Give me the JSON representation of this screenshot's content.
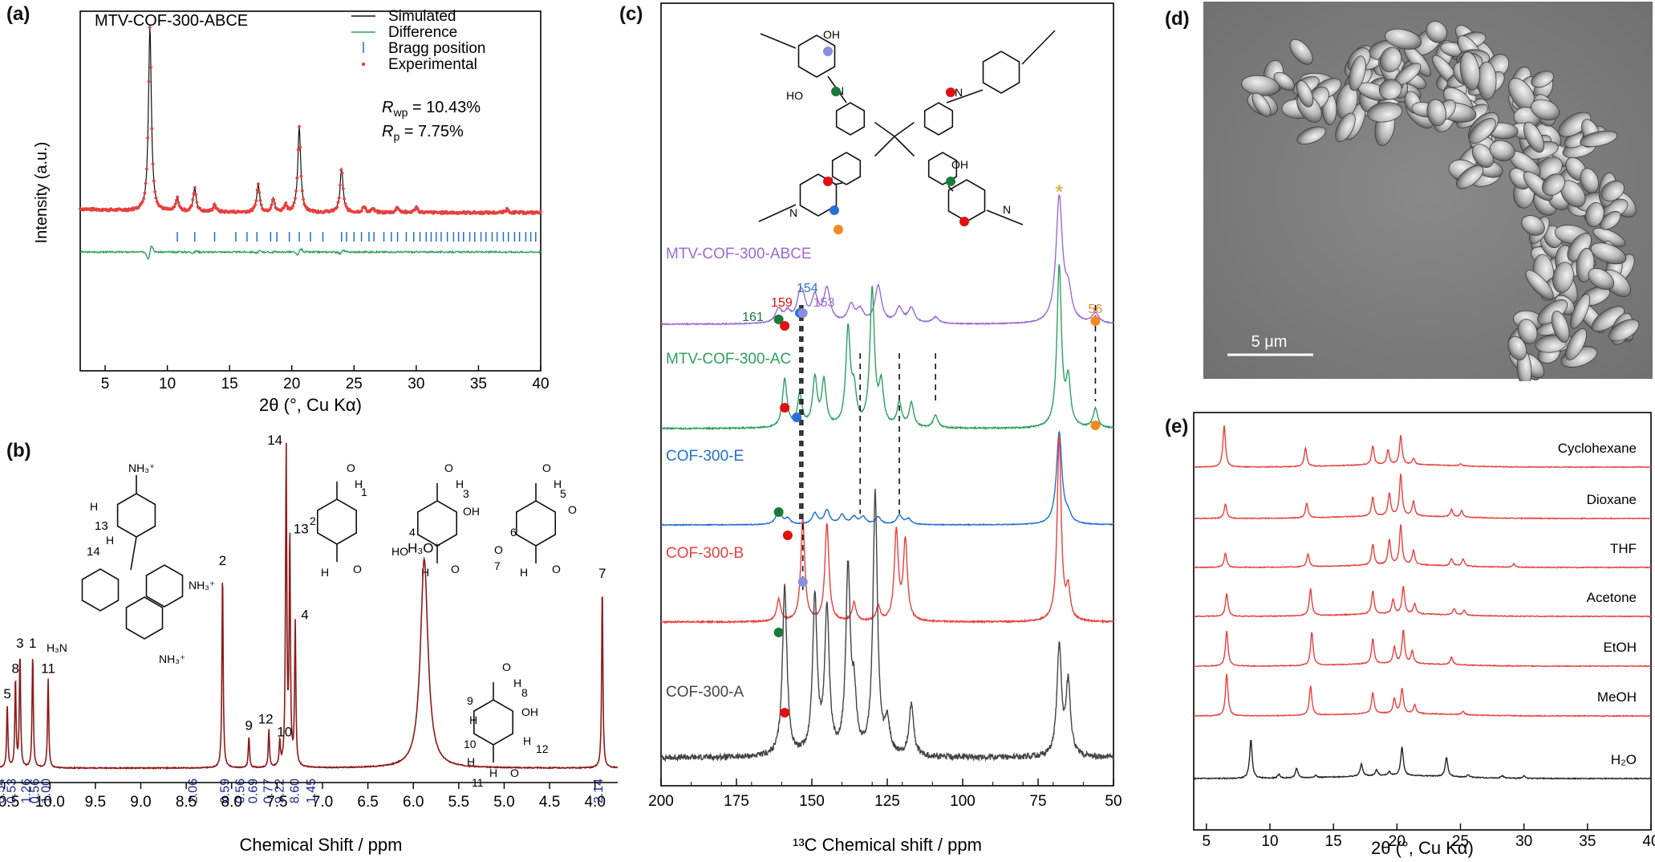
{
  "colors": {
    "red": "#e8403f",
    "green": "#2ea060",
    "blue": "#1f6fd0",
    "purple": "#9b6bd3",
    "dark": "#8b1a1a",
    "gray": "#444444",
    "navy": "#1a2a8c",
    "orange": "#e88a2a",
    "dot_green": "#1a7a3a",
    "dot_blue": "#2a6fd8",
    "dot_lavender": "#8c8ce0",
    "dot_red": "#e01010",
    "dot_orange": "#f08a20"
  },
  "panels": {
    "a": "(a)",
    "b": "(b)",
    "c": "(c)",
    "d": "(d)",
    "e": "(e)"
  },
  "chart_data": [
    {
      "id": "a",
      "type": "line",
      "title": "MTV-COF-300-ABCE",
      "xlabel": "2θ (°, Cu Kα)",
      "ylabel": "Intensity (a.u.)",
      "xlim": [
        3,
        40
      ],
      "xticks": [
        "5",
        "10",
        "15",
        "20",
        "25",
        "30",
        "35",
        "40"
      ],
      "legend": {
        "placement": "top-right",
        "entries": [
          "Simulated",
          "Difference",
          "Bragg position",
          "Experimental"
        ]
      },
      "annotations": [
        "Rwp = 10.43%",
        "Rp = 7.75%"
      ],
      "peaks_experimental": [
        [
          8.6,
          1.0
        ],
        [
          10.8,
          0.07
        ],
        [
          12.2,
          0.13
        ],
        [
          13.8,
          0.04
        ],
        [
          17.3,
          0.15
        ],
        [
          18.5,
          0.07
        ],
        [
          19.5,
          0.04
        ],
        [
          20.6,
          0.46
        ],
        [
          24.0,
          0.24
        ],
        [
          25.8,
          0.03
        ],
        [
          26.5,
          0.02
        ],
        [
          28.5,
          0.03
        ],
        [
          30.0,
          0.03
        ],
        [
          37.3,
          0.02
        ]
      ],
      "bragg_positions": [
        10.8,
        12.2,
        13.8,
        15.5,
        16.4,
        17.2,
        18.3,
        18.8,
        19.8,
        20.6,
        21.5,
        22.5,
        24.0,
        24.4,
        25.0,
        25.6,
        26.2,
        26.6,
        27.4,
        28.0,
        28.5,
        29.2,
        29.8,
        30.3,
        30.8,
        31.2,
        31.6,
        32.0,
        32.5,
        33.0,
        33.4,
        33.8,
        34.3,
        34.7,
        35.2,
        35.6,
        36.1,
        36.5,
        37.0,
        37.4,
        37.9,
        38.3,
        38.8,
        39.2,
        39.6
      ]
    },
    {
      "id": "b",
      "type": "line",
      "xlabel": "Chemical Shift / ppm",
      "xlim": [
        10.55,
        3.75
      ],
      "xticks": [
        "10.5",
        "10.0",
        "9.5",
        "9.0",
        "8.5",
        "8.0",
        "7.5",
        "7.0",
        "6.5",
        "6.0",
        "5.5",
        "5.0",
        "4.5",
        "4.0"
      ],
      "peaks": [
        {
          "ppm": 10.47,
          "h": 0.2,
          "label": "5"
        },
        {
          "ppm": 10.38,
          "h": 0.28,
          "label": "8"
        },
        {
          "ppm": 10.33,
          "h": 0.36,
          "label": "3"
        },
        {
          "ppm": 10.19,
          "h": 0.36,
          "label": "1"
        },
        {
          "ppm": 10.02,
          "h": 0.28,
          "label": "11"
        },
        {
          "ppm": 8.1,
          "h": 0.62,
          "label": "2"
        },
        {
          "ppm": 7.81,
          "h": 0.1,
          "label": "9"
        },
        {
          "ppm": 7.59,
          "h": 0.12,
          "label": "12"
        },
        {
          "ppm": 7.47,
          "h": 0.08,
          "label": "10"
        },
        {
          "ppm": 7.4,
          "h": 1.0,
          "label": "14"
        },
        {
          "ppm": 7.36,
          "h": 0.72,
          "label": "13"
        },
        {
          "ppm": 7.3,
          "h": 0.45,
          "label": "4"
        },
        {
          "ppm": 5.88,
          "h": 0.66,
          "label": "H₃O⁺"
        },
        {
          "ppm": 3.92,
          "h": 0.58,
          "label": "7"
        }
      ],
      "integrals": [
        {
          "ppm": 10.5,
          "value": "0.54"
        },
        {
          "ppm": 10.38,
          "value": "0.53"
        },
        {
          "ppm": 10.22,
          "value": "1.26"
        },
        {
          "ppm": 10.12,
          "value": "0.56"
        },
        {
          "ppm": 10.0,
          "value": "1.00"
        },
        {
          "ppm": 8.38,
          "value": "2.06"
        },
        {
          "ppm": 8.03,
          "value": "0.59"
        },
        {
          "ppm": 7.86,
          "value": "0.56"
        },
        {
          "ppm": 7.72,
          "value": "0.69"
        },
        {
          "ppm": 7.55,
          "value": "0.77"
        },
        {
          "ppm": 7.43,
          "value": "9.22"
        },
        {
          "ppm": 7.26,
          "value": "8.60"
        },
        {
          "ppm": 7.08,
          "value": "1.45"
        },
        {
          "ppm": 3.92,
          "value": "2.14"
        }
      ],
      "structure_labels": [
        "1",
        "2",
        "3",
        "4",
        "5",
        "6",
        "7",
        "8",
        "9",
        "10",
        "11",
        "12",
        "13",
        "14",
        "H",
        "O",
        "OH",
        "HO",
        "NH₃⁺",
        "H₃N"
      ]
    },
    {
      "id": "c",
      "type": "line",
      "xlabel": "¹³C Chemical shift / ppm",
      "xlim": [
        200,
        50
      ],
      "xticks": [
        "200",
        "175",
        "150",
        "125",
        "100",
        "75",
        "50"
      ],
      "series": [
        {
          "name": "MTV-COF-300-ABCE",
          "peaks": [
            [
              161,
              0.11
            ],
            [
              158,
              0.08
            ],
            [
              154,
              0.16
            ],
            [
              153,
              0.14
            ],
            [
              149,
              0.2
            ],
            [
              145,
              0.27
            ],
            [
              137,
              0.14
            ],
            [
              134,
              0.1
            ],
            [
              128,
              0.3
            ],
            [
              121,
              0.12
            ],
            [
              117,
              0.12
            ],
            [
              109,
              0.05
            ],
            [
              68,
              1.0
            ],
            [
              65,
              0.22
            ],
            [
              56,
              0.08
            ]
          ]
        },
        {
          "name": "MTV-COF-300-AC",
          "peaks": [
            [
              159,
              0.3
            ],
            [
              154,
              0.2
            ],
            [
              149,
              0.3
            ],
            [
              146,
              0.28
            ],
            [
              138,
              0.6
            ],
            [
              136,
              0.2
            ],
            [
              130,
              0.85
            ],
            [
              127,
              0.25
            ],
            [
              121,
              0.15
            ],
            [
              117,
              0.15
            ],
            [
              109,
              0.08
            ],
            [
              68,
              1.0
            ],
            [
              65,
              0.28
            ],
            [
              56,
              0.12
            ]
          ]
        },
        {
          "name": "COF-300-E",
          "peaks": [
            [
              161,
              0.15
            ],
            [
              158,
              0.06
            ],
            [
              149,
              0.12
            ],
            [
              145,
              0.15
            ],
            [
              140,
              0.1
            ],
            [
              136,
              0.08
            ],
            [
              133,
              0.08
            ],
            [
              128,
              0.08
            ],
            [
              121,
              0.1
            ],
            [
              118,
              0.06
            ],
            [
              68,
              1.0
            ],
            [
              65,
              0.08
            ]
          ]
        },
        {
          "name": "COF-300-B",
          "peaks": [
            [
              161,
              0.12
            ],
            [
              153,
              0.55
            ],
            [
              145,
              0.53
            ],
            [
              136,
              0.1
            ],
            [
              128,
              0.08
            ],
            [
              122,
              0.48
            ],
            [
              119,
              0.43
            ],
            [
              68,
              1.0
            ],
            [
              65,
              0.16
            ]
          ]
        },
        {
          "name": "COF-300-A",
          "peaks": [
            [
              159,
              0.65
            ],
            [
              149,
              0.6
            ],
            [
              145,
              0.55
            ],
            [
              138,
              0.7
            ],
            [
              136,
              0.2
            ],
            [
              129,
              1.0
            ],
            [
              125,
              0.12
            ],
            [
              117,
              0.2
            ],
            [
              68,
              0.42
            ],
            [
              65,
              0.28
            ]
          ]
        }
      ],
      "annotations": [
        "161",
        "159",
        "154",
        "153",
        "56",
        "*"
      ],
      "structure_labels": [
        "OH",
        "HO",
        "N",
        "O",
        "OH"
      ]
    },
    {
      "id": "e",
      "type": "line",
      "xlabel": "2θ (°, Cu Kα)",
      "xlim": [
        4,
        40
      ],
      "xticks": [
        "5",
        "10",
        "15",
        "20",
        "25",
        "30",
        "35",
        "40"
      ],
      "series": [
        {
          "name": "Cyclohexane",
          "color": "#e8403f",
          "peaks": [
            [
              6.4,
              1.0
            ],
            [
              12.8,
              0.45
            ],
            [
              18.1,
              0.45
            ],
            [
              19.3,
              0.35
            ],
            [
              20.3,
              0.7
            ],
            [
              21.3,
              0.15
            ],
            [
              25.0,
              0.05
            ]
          ]
        },
        {
          "name": "Dioxane",
          "color": "#e8403f",
          "peaks": [
            [
              6.5,
              0.35
            ],
            [
              12.9,
              0.35
            ],
            [
              18.1,
              0.45
            ],
            [
              19.4,
              0.55
            ],
            [
              20.3,
              1.0
            ],
            [
              21.3,
              0.35
            ],
            [
              24.3,
              0.18
            ],
            [
              25.1,
              0.16
            ]
          ]
        },
        {
          "name": "THF",
          "color": "#e8403f",
          "peaks": [
            [
              6.5,
              0.35
            ],
            [
              13.0,
              0.3
            ],
            [
              18.1,
              0.5
            ],
            [
              19.4,
              0.6
            ],
            [
              20.3,
              0.95
            ],
            [
              21.3,
              0.35
            ],
            [
              24.3,
              0.18
            ],
            [
              25.2,
              0.18
            ],
            [
              29.2,
              0.08
            ]
          ]
        },
        {
          "name": "Acetone",
          "color": "#e8403f",
          "peaks": [
            [
              6.6,
              0.55
            ],
            [
              13.2,
              0.65
            ],
            [
              18.1,
              0.55
            ],
            [
              19.7,
              0.35
            ],
            [
              20.5,
              0.65
            ],
            [
              21.4,
              0.25
            ],
            [
              24.5,
              0.15
            ],
            [
              25.3,
              0.12
            ]
          ]
        },
        {
          "name": "EtOH",
          "color": "#e8403f",
          "peaks": [
            [
              6.6,
              0.85
            ],
            [
              13.3,
              0.8
            ],
            [
              18.1,
              0.6
            ],
            [
              19.8,
              0.4
            ],
            [
              20.5,
              0.8
            ],
            [
              21.2,
              0.3
            ],
            [
              24.3,
              0.18
            ]
          ]
        },
        {
          "name": "MeOH",
          "color": "#e8403f",
          "peaks": [
            [
              6.6,
              1.0
            ],
            [
              13.2,
              0.7
            ],
            [
              18.1,
              0.5
            ],
            [
              19.8,
              0.35
            ],
            [
              20.4,
              0.6
            ],
            [
              21.4,
              0.2
            ],
            [
              25.2,
              0.08
            ]
          ]
        },
        {
          "name": "H₂O",
          "color": "#222222",
          "peaks": [
            [
              8.5,
              0.8
            ],
            [
              10.7,
              0.08
            ],
            [
              12.1,
              0.2
            ],
            [
              13.6,
              0.05
            ],
            [
              17.2,
              0.25
            ],
            [
              18.4,
              0.12
            ],
            [
              19.4,
              0.08
            ],
            [
              20.4,
              0.6
            ],
            [
              23.9,
              0.4
            ],
            [
              25.6,
              0.05
            ],
            [
              28.3,
              0.05
            ],
            [
              30.0,
              0.05
            ]
          ]
        }
      ]
    }
  ],
  "sem": {
    "scale_bar": "5 μm"
  }
}
